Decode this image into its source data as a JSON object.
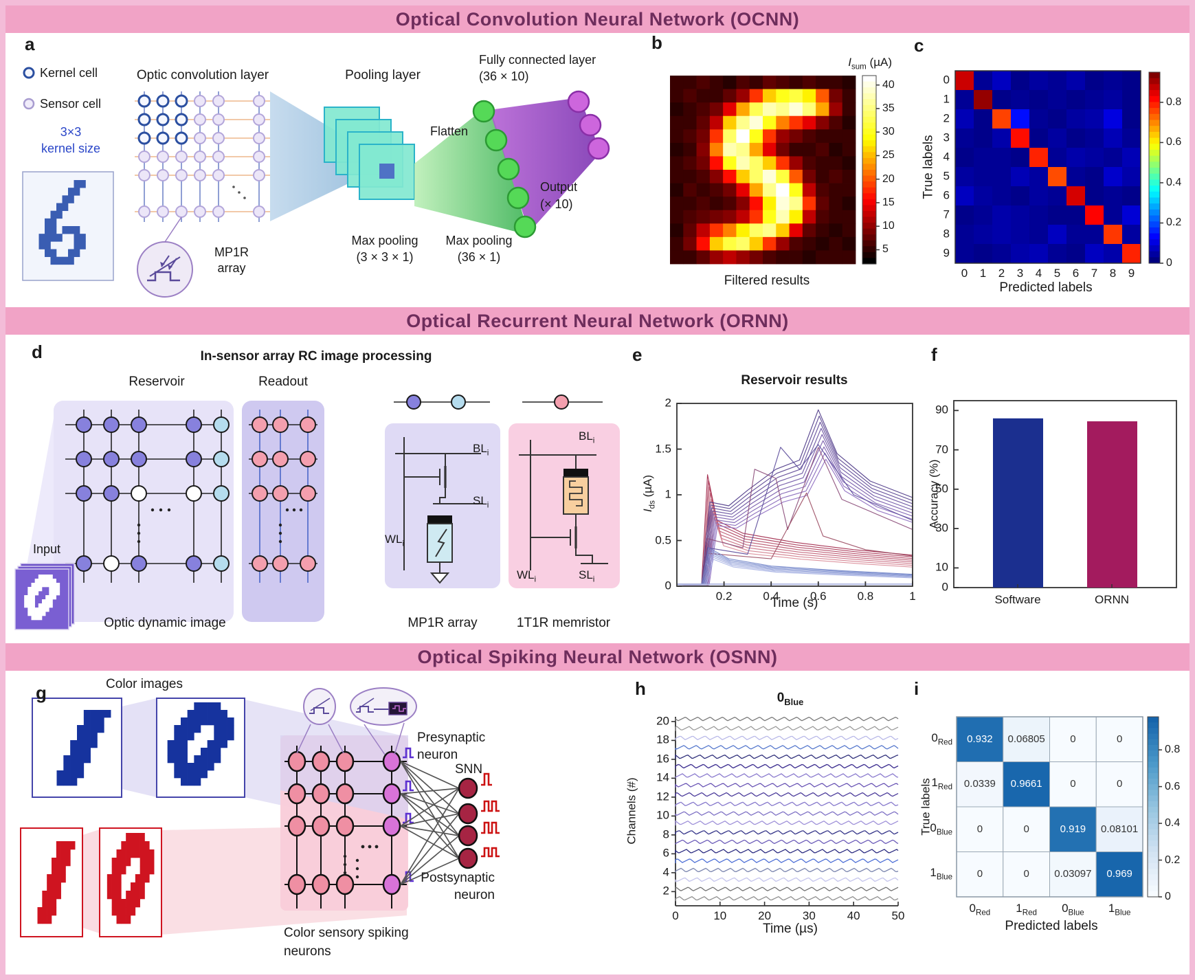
{
  "banners": {
    "ocnn": "Optical  Convolution Neural Network (OCNN)",
    "ornn": "Optical  Recurrent Neural Network (ORNN)",
    "osnn": "Optical  Spiking Neural Network (OSNN)"
  },
  "panel_a": {
    "label": "a",
    "legend_kernel": "Kernel cell",
    "legend_sensor": "Sensor cell",
    "kernel_note1": "3×3",
    "kernel_note2": "kernel size",
    "conv_title": "Optic convolution layer",
    "mp1r1": "MP1R",
    "mp1r2": "array",
    "pooling_title": "Pooling layer",
    "maxpool1a": "Max pooling",
    "maxpool1b": "(3 × 3 × 1)",
    "flatten": "Flatten",
    "maxpool2a": "Max pooling",
    "maxpool2b": "(36 × 1)",
    "fc1": "Fully connected layer",
    "fc2": "(36 × 10)",
    "out1": "Output",
    "out2": "(× 10)",
    "digit6": [
      "000000011000",
      "000000110000",
      "000001100000",
      "000011000000",
      "000110000000",
      "001100000000",
      "001101110000",
      "011110011000",
      "011000011000",
      "001100110000",
      "000111100000",
      "000000000000"
    ]
  },
  "panel_b": {
    "label": "b",
    "cb_title": {
      "pre": "I",
      "sub": "sum",
      "post": " (µA)"
    },
    "caption": "Filtered results"
  },
  "panel_c": {
    "label": "c",
    "xlabel": "Predicted labels",
    "ylabel": "True labels"
  },
  "panel_d": {
    "label": "d",
    "title": "In-sensor array RC image processing",
    "reservoir": "Reservoir",
    "readout": "Readout",
    "input": "Input",
    "optic_caption": "Optic dynamic image",
    "mp1r_caption": "MP1R array",
    "t1r_caption": "1T1R memristor",
    "bl": "BL",
    "sl": "SL",
    "wl": "WL",
    "sub_i": "i",
    "zero": [
      "000001111000",
      "000011111100",
      "000111111110",
      "001111001110",
      "001110001110",
      "011100011100",
      "011100111000",
      "011101111000",
      "001111110000",
      "001111100000",
      "000111000000",
      "000000000000"
    ]
  },
  "panel_e": {
    "label": "e",
    "title": "Reservoir results",
    "xlabel": "Time (s)",
    "ylabel": {
      "pre": "I",
      "sub": "ds",
      "post": " (µA)"
    }
  },
  "panel_f": {
    "label": "f",
    "ylabel": "Accuracy (%)"
  },
  "panel_g": {
    "label": "g",
    "title": "Color images",
    "pre1": "Presynaptic",
    "pre2": "neuron",
    "snn": "SNN",
    "post1": "Postsynaptic",
    "post2": "neuron",
    "cap1": "Color sensory spiking",
    "cap2": "neurons",
    "digit_one": [
      "000000000000",
      "000000011110",
      "000000011100",
      "000000111100",
      "000000111000",
      "000001111000",
      "000001110000",
      "000011110000",
      "000011100000",
      "000111100000",
      "000111000000",
      "000000000000"
    ],
    "digit_zero": [
      "000001111000",
      "000011111100",
      "000111111110",
      "001111001110",
      "001110001110",
      "011100011100",
      "011100111000",
      "011101111000",
      "001111110000",
      "001111100000",
      "000111000000",
      "000000000000"
    ],
    "blue": "#16339e",
    "red": "#cf1420"
  },
  "panel_h": {
    "label": "h",
    "title": {
      "main": "0",
      "sub": "Blue"
    },
    "ylabel": "Channels (#)",
    "xlabel": "Time (µs)"
  },
  "panel_i": {
    "label": "i",
    "xlabel": "Predicted labels",
    "ylabel": "True labels"
  },
  "chart_data": {
    "b": {
      "type": "heatmap",
      "title": "I_sum (µA)",
      "caption": "Filtered results",
      "colormap": "hot",
      "vmin": 2,
      "vmax": 42,
      "colorbar_ticks": [
        40,
        35,
        30,
        25,
        20,
        15,
        10,
        5
      ],
      "values": [
        [
          5,
          5,
          6,
          5,
          4,
          6,
          5,
          7,
          6,
          5,
          6,
          5,
          5,
          4
        ],
        [
          5,
          6,
          5,
          5,
          7,
          10,
          18,
          26,
          30,
          32,
          28,
          20,
          8,
          5
        ],
        [
          4,
          5,
          6,
          8,
          14,
          24,
          33,
          38,
          36,
          40,
          35,
          24,
          10,
          5
        ],
        [
          5,
          5,
          7,
          12,
          26,
          36,
          40,
          30,
          22,
          18,
          14,
          9,
          6,
          4
        ],
        [
          5,
          6,
          8,
          18,
          34,
          42,
          30,
          18,
          10,
          8,
          6,
          5,
          5,
          5
        ],
        [
          4,
          5,
          9,
          22,
          38,
          36,
          24,
          14,
          8,
          5,
          5,
          6,
          4,
          5
        ],
        [
          5,
          6,
          8,
          16,
          30,
          38,
          34,
          26,
          18,
          10,
          6,
          5,
          5,
          4
        ],
        [
          5,
          5,
          6,
          9,
          16,
          26,
          34,
          40,
          32,
          20,
          8,
          5,
          6,
          5
        ],
        [
          4,
          6,
          5,
          6,
          8,
          14,
          24,
          36,
          42,
          30,
          12,
          6,
          5,
          5
        ],
        [
          5,
          5,
          6,
          5,
          6,
          9,
          16,
          28,
          40,
          36,
          18,
          7,
          5,
          4
        ],
        [
          5,
          6,
          7,
          8,
          9,
          12,
          18,
          30,
          38,
          28,
          12,
          6,
          5,
          5
        ],
        [
          4,
          7,
          12,
          18,
          22,
          28,
          34,
          36,
          26,
          14,
          7,
          5,
          4,
          5
        ],
        [
          5,
          8,
          16,
          26,
          32,
          34,
          26,
          18,
          10,
          6,
          5,
          4,
          5,
          4
        ],
        [
          5,
          5,
          7,
          10,
          12,
          10,
          8,
          6,
          5,
          5,
          4,
          5,
          5,
          5
        ]
      ]
    },
    "c": {
      "type": "heatmap",
      "colormap": "jet",
      "vmax": 0.95,
      "x_ticks": [
        "0",
        "1",
        "2",
        "3",
        "4",
        "5",
        "6",
        "7",
        "8",
        "9"
      ],
      "y_ticks": [
        "0",
        "1",
        "2",
        "3",
        "4",
        "5",
        "6",
        "7",
        "8",
        "9"
      ],
      "xlabel": "Predicted labels",
      "ylabel": "True labels",
      "colorbar_ticks": [
        "0.8",
        "0.6",
        "0.4",
        "0.2",
        "0"
      ],
      "matrix": [
        [
          0.88,
          0.02,
          0.06,
          0.01,
          0.03,
          0.02,
          0.04,
          0.01,
          0.02,
          0.01
        ],
        [
          0.02,
          0.93,
          0.01,
          0.02,
          0.01,
          0.02,
          0.01,
          0.02,
          0.03,
          0.01
        ],
        [
          0.05,
          0.01,
          0.77,
          0.13,
          0.02,
          0.01,
          0.03,
          0.04,
          0.09,
          0.01
        ],
        [
          0.02,
          0.01,
          0.04,
          0.82,
          0.01,
          0.03,
          0.01,
          0.02,
          0.05,
          0.02
        ],
        [
          0.01,
          0.02,
          0.02,
          0.01,
          0.8,
          0.02,
          0.04,
          0.03,
          0.02,
          0.05
        ],
        [
          0.03,
          0.02,
          0.02,
          0.05,
          0.03,
          0.76,
          0.02,
          0.01,
          0.07,
          0.04
        ],
        [
          0.06,
          0.03,
          0.02,
          0.01,
          0.03,
          0.02,
          0.87,
          0.01,
          0.02,
          0.01
        ],
        [
          0.01,
          0.02,
          0.04,
          0.03,
          0.02,
          0.01,
          0.01,
          0.83,
          0.02,
          0.08
        ],
        [
          0.02,
          0.03,
          0.04,
          0.03,
          0.02,
          0.06,
          0.02,
          0.02,
          0.78,
          0.03
        ],
        [
          0.02,
          0.01,
          0.02,
          0.04,
          0.05,
          0.02,
          0.01,
          0.06,
          0.04,
          0.8
        ]
      ]
    },
    "e": {
      "type": "line",
      "title": "Reservoir results",
      "xlabel": "Time (s)",
      "ylabel": "I_ds (µA)",
      "xlim": [
        0,
        1
      ],
      "ylim": [
        0,
        2
      ],
      "x_ticks": [
        "0.2",
        "0.4",
        "0.6",
        "0.8",
        "1"
      ],
      "x_tick_vals": [
        0.2,
        0.4,
        0.6,
        0.8,
        1
      ],
      "y_ticks": [
        "0",
        "0.5",
        "1",
        "1.5",
        "2"
      ],
      "y_tick_vals": [
        0,
        0.5,
        1,
        1.5,
        2
      ],
      "families": [
        {
          "count": 8,
          "c1": "#9e2246",
          "c2": "#d98a96",
          "step": 0.055,
          "pts": [
            [
              0,
              0.02
            ],
            [
              0.105,
              0.02
            ],
            [
              0.13,
              1.22
            ],
            [
              0.17,
              0.72
            ],
            [
              0.28,
              0.58
            ],
            [
              0.5,
              0.48
            ],
            [
              0.75,
              0.4
            ],
            [
              1,
              0.34
            ]
          ]
        },
        {
          "count": 9,
          "c1": "#4a3585",
          "c2": "#8d6cc0",
          "step": 0.035,
          "pts": [
            [
              0,
              0.02
            ],
            [
              0.105,
              0.02
            ],
            [
              0.14,
              0.92
            ],
            [
              0.22,
              0.88
            ],
            [
              0.3,
              1.05
            ],
            [
              0.42,
              1.28
            ],
            [
              0.52,
              1.38
            ],
            [
              0.6,
              1.93
            ],
            [
              0.68,
              1.45
            ],
            [
              0.82,
              1.15
            ],
            [
              1,
              0.97
            ]
          ]
        },
        {
          "count": 1,
          "c1": "#8a4a78",
          "c2": "#8a4a78",
          "step": 0,
          "pts": [
            [
              0,
              0.02
            ],
            [
              0.105,
              0.02
            ],
            [
              0.13,
              0.52
            ],
            [
              0.28,
              0.42
            ],
            [
              0.33,
              1.28
            ],
            [
              0.42,
              1.18
            ],
            [
              0.47,
              0.62
            ],
            [
              0.6,
              1.52
            ],
            [
              0.7,
              0.95
            ],
            [
              1,
              0.62
            ]
          ]
        },
        {
          "count": 1,
          "c1": "#5a4a9a",
          "c2": "#5a4a9a",
          "step": 0,
          "pts": [
            [
              0,
              0.02
            ],
            [
              0.105,
              0.02
            ],
            [
              0.13,
              0.42
            ],
            [
              0.3,
              0.35
            ],
            [
              0.44,
              1.52
            ],
            [
              0.52,
              1.28
            ],
            [
              0.6,
              1.55
            ],
            [
              0.75,
              1.0
            ],
            [
              1,
              0.72
            ]
          ]
        },
        {
          "count": 1,
          "c1": "#9a4a60",
          "c2": "#9a4a60",
          "step": 0,
          "pts": [
            [
              0,
              0.02
            ],
            [
              0.105,
              0.02
            ],
            [
              0.13,
              0.36
            ],
            [
              0.4,
              0.3
            ],
            [
              0.55,
              1.02
            ],
            [
              0.62,
              0.55
            ],
            [
              0.8,
              0.4
            ],
            [
              1,
              0.33
            ]
          ]
        },
        {
          "count": 6,
          "c1": "#6b7fc6",
          "c2": "#a8b4e4",
          "step": 0.06,
          "pts": [
            [
              0,
              0.02
            ],
            [
              0.105,
              0.02
            ],
            [
              0.135,
              0.42
            ],
            [
              0.22,
              0.3
            ],
            [
              0.4,
              0.22
            ],
            [
              0.7,
              0.17
            ],
            [
              1,
              0.13
            ]
          ]
        },
        {
          "count": 2,
          "c1": "#9aa4d8",
          "c2": "#b8c0e8",
          "step": 0.3,
          "pts": [
            [
              0,
              0.025
            ],
            [
              1,
              0.025
            ]
          ]
        }
      ]
    },
    "f": {
      "type": "bar",
      "categories": [
        "Software",
        "ORNN"
      ],
      "values": [
        86,
        84.5
      ],
      "colors": [
        "#1b2f8f",
        "#a31b5e"
      ],
      "ylabel": "Accuracy (%)",
      "ymax": 95,
      "y_ticks": [
        0,
        10,
        30,
        50,
        70,
        90
      ]
    },
    "h": {
      "type": "line",
      "title": "0_Blue",
      "xlabel": "Time (µs)",
      "ylabel": "Channels (#)",
      "x_ticks": [
        0,
        10,
        20,
        30,
        40,
        50
      ],
      "y_ticks": [
        2,
        4,
        6,
        8,
        10,
        12,
        14,
        16,
        18,
        20
      ],
      "n_channels": 20,
      "channel_colors": [
        "#8f8f8f",
        "#6f6f6f",
        "#c4c4ec",
        "#7d88b0",
        "#4d6fd6",
        "#2a2a80",
        "#6a5ab8",
        "#333388",
        "#9d8fd8",
        "#7d6fc4",
        "#8678cc",
        "#4a3a9a",
        "#6a55b5",
        "#8a7ace",
        "#3d2f90",
        "#2f2f7a",
        "#5577cc",
        "#b9b9e8",
        "#9a9a9a",
        "#777777"
      ]
    },
    "i": {
      "type": "heatmap",
      "colormap": "blues",
      "vmax": 0.98,
      "labels": [
        {
          "main": "0",
          "sub": "Red"
        },
        {
          "main": "1",
          "sub": "Red"
        },
        {
          "main": "0",
          "sub": "Blue"
        },
        {
          "main": "1",
          "sub": "Blue"
        }
      ],
      "xlabel": "Predicted labels",
      "ylabel": "True labels",
      "colorbar_ticks": [
        "0.8",
        "0.6",
        "0.4",
        "0.2",
        "0"
      ],
      "matrix": [
        [
          0.932,
          0.06805,
          0,
          0
        ],
        [
          0.0339,
          0.9661,
          0,
          0
        ],
        [
          0,
          0,
          0.919,
          0.08101
        ],
        [
          0,
          0,
          0.03097,
          0.969
        ]
      ],
      "cell_text": [
        [
          "0.932",
          "0.06805",
          "0",
          "0"
        ],
        [
          "0.0339",
          "0.9661",
          "0",
          "0"
        ],
        [
          "0",
          "0",
          "0.919",
          "0.08101"
        ],
        [
          "0",
          "0",
          "0.03097",
          "0.969"
        ]
      ]
    }
  }
}
